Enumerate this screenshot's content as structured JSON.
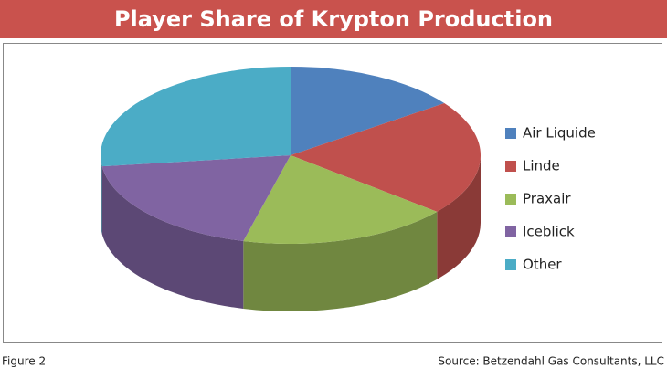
{
  "chart_data": {
    "type": "pie3d",
    "title": "Player Share of Krypton Production",
    "categories": [
      "Air Liquide",
      "Linde",
      "Praxair",
      "Iceblick",
      "Other"
    ],
    "values": [
      15,
      21,
      18,
      19,
      27
    ],
    "colors": [
      "#4f81bd",
      "#c0504d",
      "#9bbb59",
      "#8064a2",
      "#4bacc6"
    ],
    "legend": "right",
    "figure_label": "Figure 2",
    "source": "Source: Betzendahl Gas Consultants, LLC"
  }
}
